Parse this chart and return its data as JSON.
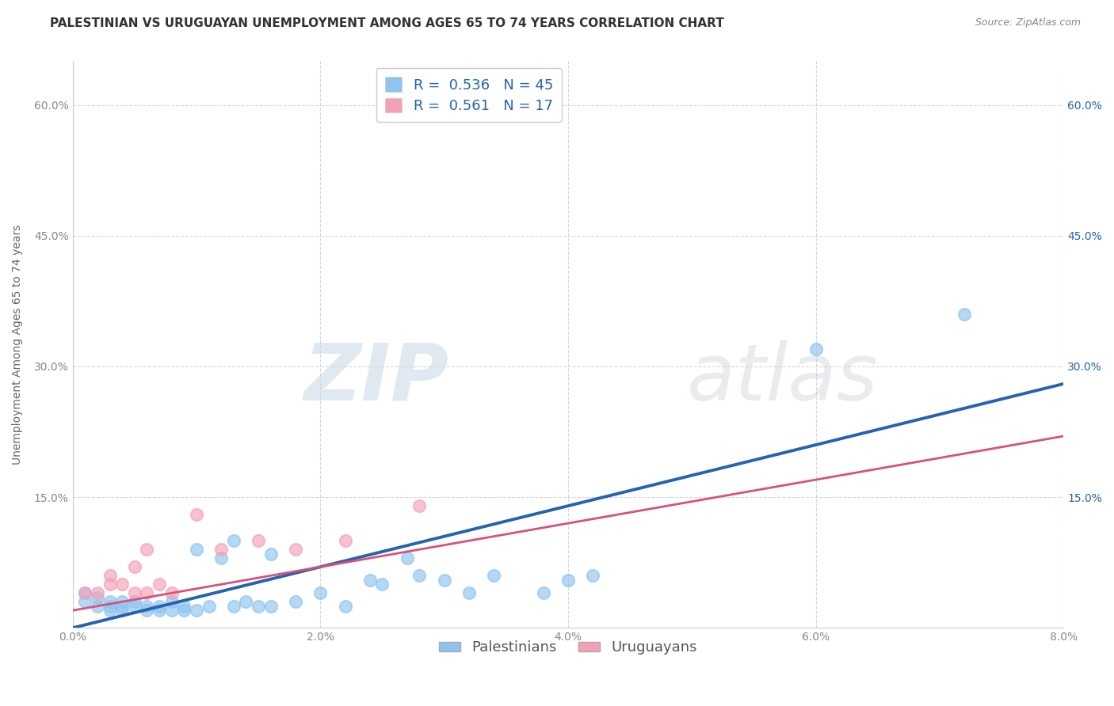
{
  "title": "PALESTINIAN VS URUGUAYAN UNEMPLOYMENT AMONG AGES 65 TO 74 YEARS CORRELATION CHART",
  "source": "Source: ZipAtlas.com",
  "xlabel": "",
  "ylabel": "Unemployment Among Ages 65 to 74 years",
  "legend_label1": "Palestinians",
  "legend_label2": "Uruguayans",
  "r1": 0.536,
  "n1": 45,
  "r2": 0.561,
  "n2": 17,
  "color1": "#8ec4ef",
  "color2": "#f4a0b5",
  "line_color1": "#2563b0",
  "line_color2": "#d9507a",
  "xlim": [
    0.0,
    0.08
  ],
  "ylim": [
    0.0,
    0.65
  ],
  "yticks": [
    0.0,
    0.15,
    0.3,
    0.45,
    0.6
  ],
  "xticks": [
    0.0,
    0.02,
    0.04,
    0.06,
    0.08
  ],
  "xtick_labels": [
    "0.0%",
    "2.0%",
    "4.0%",
    "6.0%",
    "8.0%"
  ],
  "ytick_labels": [
    "",
    "15.0%",
    "30.0%",
    "45.0%",
    "60.0%"
  ],
  "watermark_zip": "ZIP",
  "watermark_atlas": "atlas",
  "background_color": "#ffffff",
  "scatter1_x": [
    0.001,
    0.001,
    0.002,
    0.002,
    0.003,
    0.003,
    0.003,
    0.004,
    0.004,
    0.004,
    0.005,
    0.005,
    0.006,
    0.006,
    0.007,
    0.007,
    0.008,
    0.008,
    0.009,
    0.009,
    0.01,
    0.01,
    0.011,
    0.012,
    0.013,
    0.013,
    0.014,
    0.015,
    0.016,
    0.016,
    0.018,
    0.02,
    0.022,
    0.024,
    0.025,
    0.027,
    0.028,
    0.03,
    0.032,
    0.034,
    0.038,
    0.04,
    0.042,
    0.06,
    0.072
  ],
  "scatter1_y": [
    0.03,
    0.04,
    0.025,
    0.035,
    0.02,
    0.025,
    0.03,
    0.02,
    0.025,
    0.03,
    0.025,
    0.03,
    0.02,
    0.025,
    0.02,
    0.025,
    0.02,
    0.03,
    0.02,
    0.025,
    0.02,
    0.09,
    0.025,
    0.08,
    0.025,
    0.1,
    0.03,
    0.025,
    0.025,
    0.085,
    0.03,
    0.04,
    0.025,
    0.055,
    0.05,
    0.08,
    0.06,
    0.055,
    0.04,
    0.06,
    0.04,
    0.055,
    0.06,
    0.32,
    0.36
  ],
  "scatter2_x": [
    0.001,
    0.002,
    0.003,
    0.003,
    0.004,
    0.005,
    0.005,
    0.006,
    0.006,
    0.007,
    0.008,
    0.01,
    0.012,
    0.015,
    0.018,
    0.022,
    0.028
  ],
  "scatter2_y": [
    0.04,
    0.04,
    0.05,
    0.06,
    0.05,
    0.04,
    0.07,
    0.09,
    0.04,
    0.05,
    0.04,
    0.13,
    0.09,
    0.1,
    0.09,
    0.1,
    0.14
  ],
  "trendline1_x0": 0.0,
  "trendline1_y0": 0.0,
  "trendline1_x1": 0.08,
  "trendline1_y1": 0.28,
  "trendline2_x0": 0.0,
  "trendline2_y0": 0.02,
  "trendline2_x1": 0.08,
  "trendline2_y1": 0.22,
  "title_fontsize": 11,
  "axis_label_fontsize": 10,
  "tick_fontsize": 10,
  "legend_fontsize": 13
}
